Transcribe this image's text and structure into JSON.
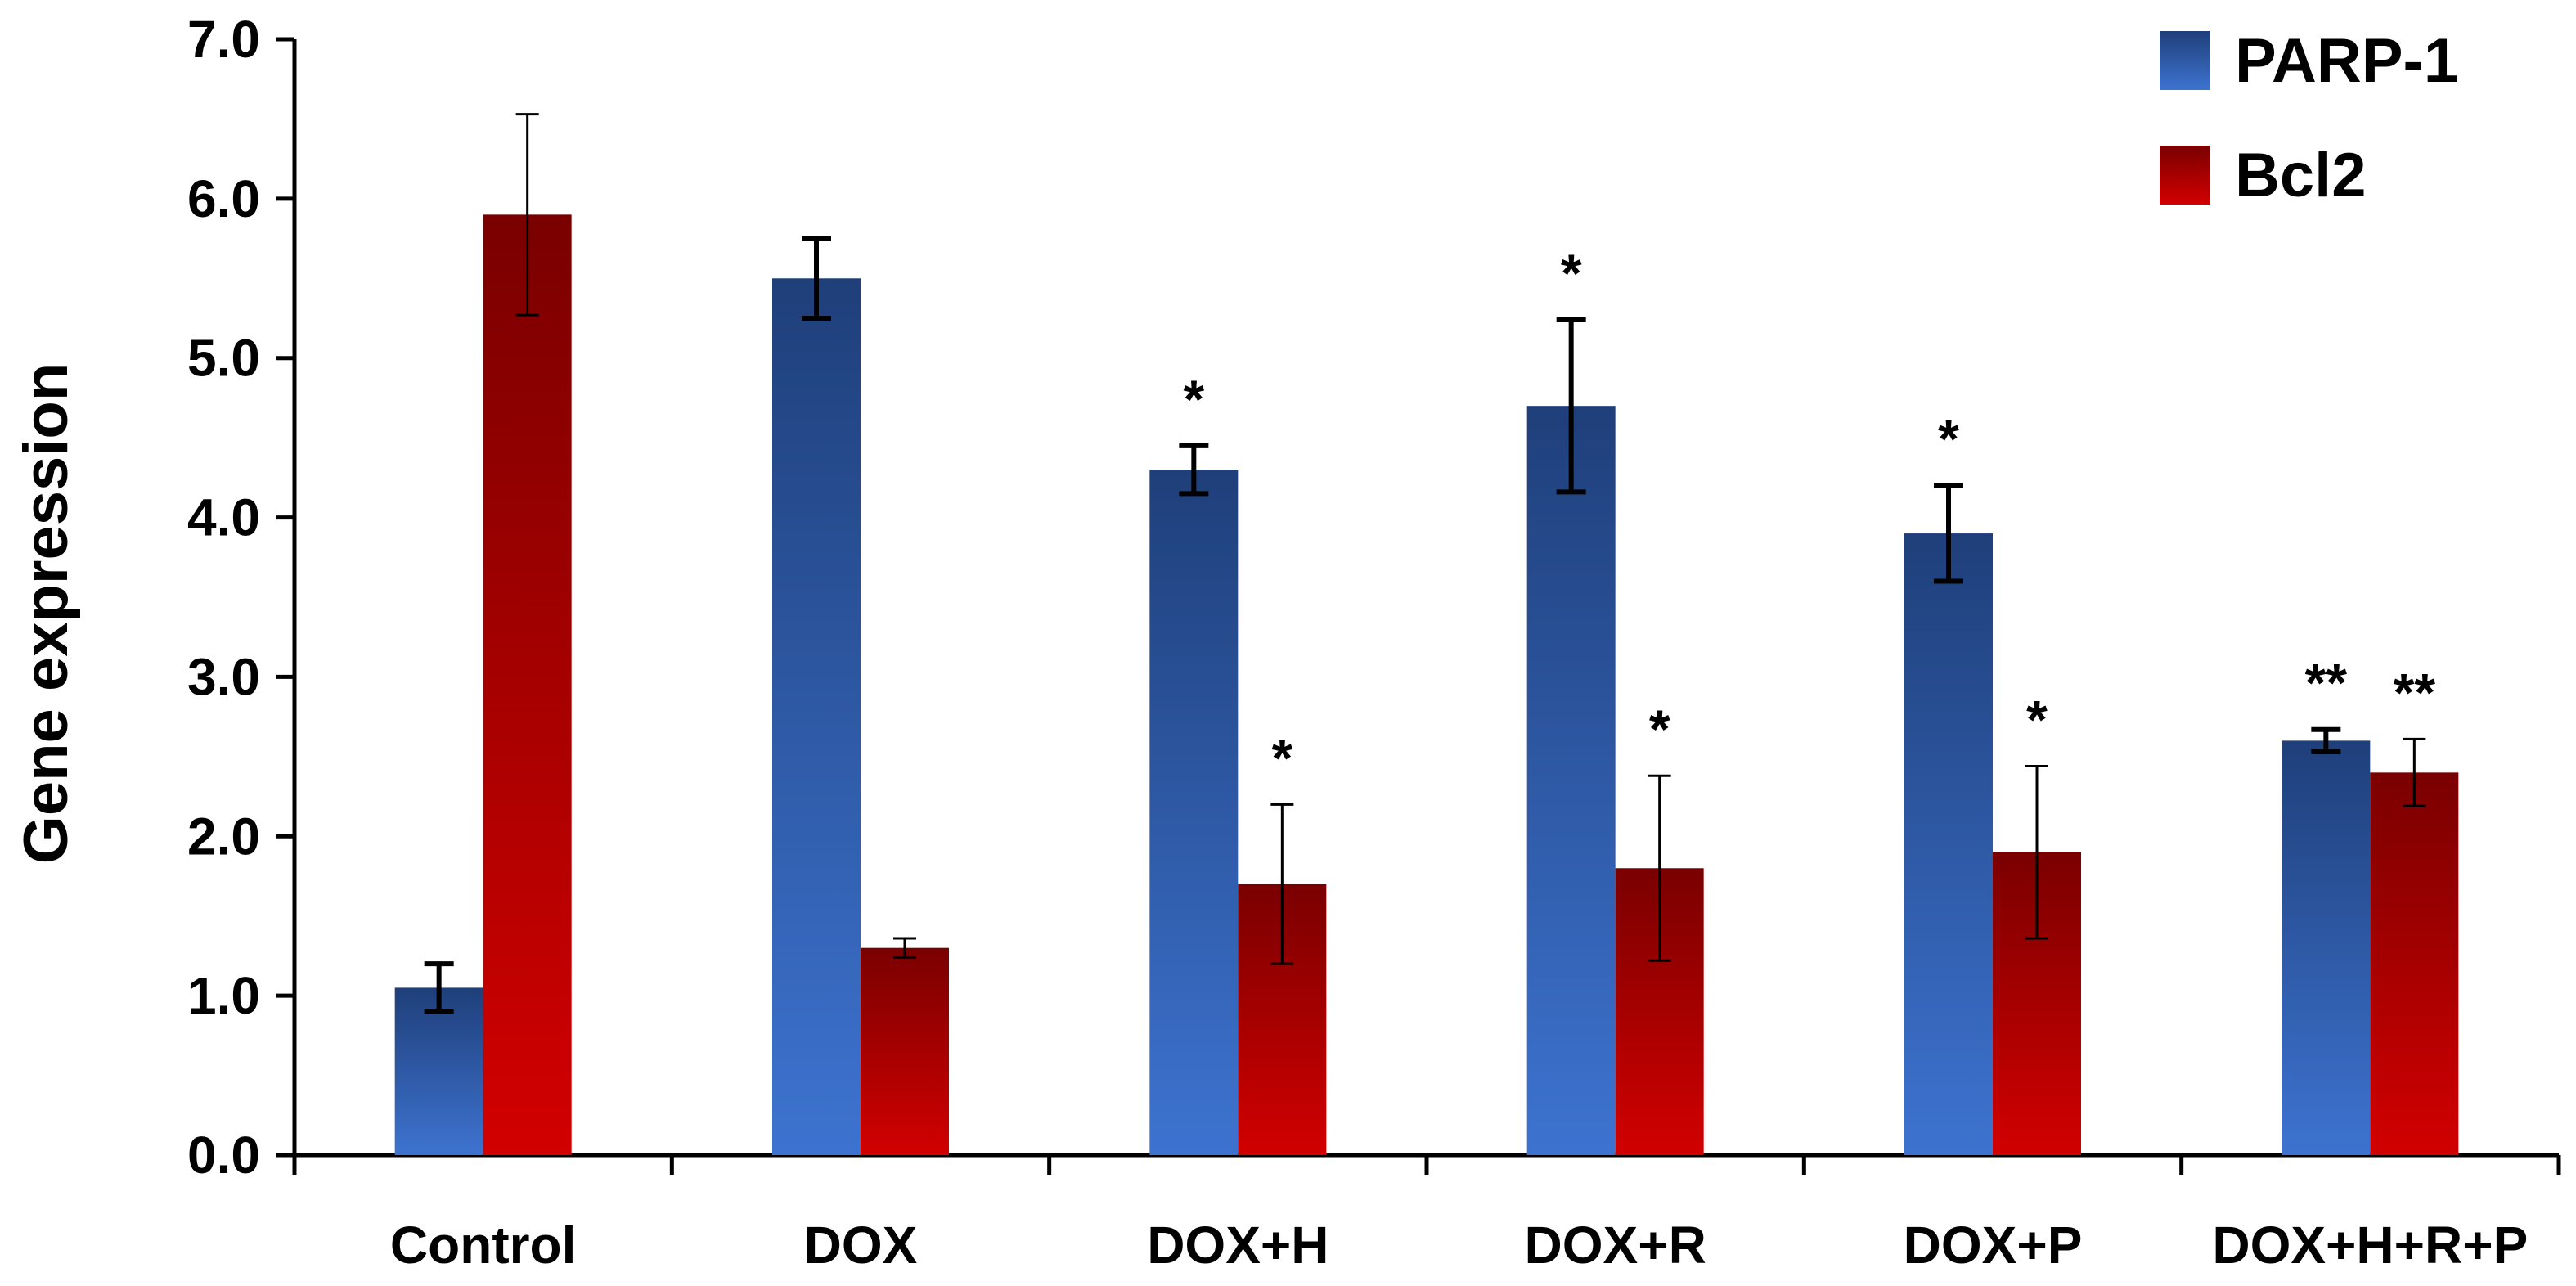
{
  "chart_data": {
    "type": "bar",
    "title": "",
    "xlabel": "",
    "ylabel": "Gene expression",
    "ylim": [
      0,
      7
    ],
    "yticks": [
      "0.0",
      "1.0",
      "2.0",
      "3.0",
      "4.0",
      "5.0",
      "6.0",
      "7.0"
    ],
    "legend_position": "top-right",
    "categories": [
      "Control",
      "DOX",
      "DOX+H",
      "DOX+R",
      "DOX+P",
      "DOX+H+R+P"
    ],
    "series": [
      {
        "name": "PARP-1",
        "color": "#2E5BA8",
        "values": [
          1.05,
          5.5,
          4.3,
          4.7,
          3.9,
          2.6
        ],
        "errors": [
          0.15,
          0.25,
          0.15,
          0.54,
          0.3,
          0.07
        ],
        "significance": [
          "",
          "",
          "*",
          "*",
          "*",
          "**"
        ]
      },
      {
        "name": "Bcl2",
        "color": "#B30000",
        "values": [
          5.9,
          1.3,
          1.7,
          1.8,
          1.9,
          2.4
        ],
        "errors": [
          0.63,
          0.06,
          0.5,
          0.58,
          0.54,
          0.21
        ],
        "significance": [
          "",
          "",
          "*",
          "*",
          "*",
          "**"
        ]
      }
    ]
  }
}
